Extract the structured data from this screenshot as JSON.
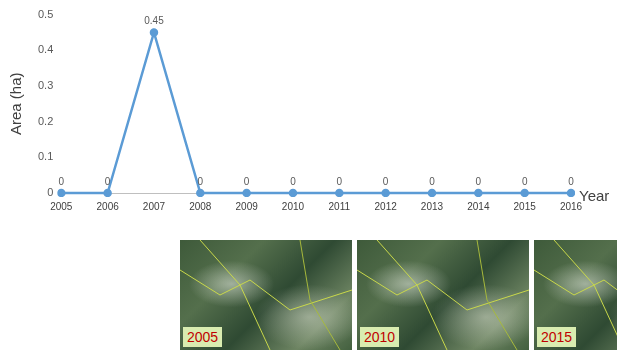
{
  "chart_data": {
    "type": "line",
    "y_label": "Area (ha)",
    "x_label": "Year",
    "categories": [
      "2005",
      "2006",
      "2007",
      "2008",
      "2009",
      "2010",
      "2011",
      "2012",
      "2013",
      "2014",
      "2015",
      "2016"
    ],
    "values": [
      0,
      0,
      0.45,
      0,
      0,
      0,
      0,
      0,
      0,
      0,
      0,
      0
    ],
    "color": "#5b9bd5",
    "marker": "circle",
    "data_labels": true,
    "grid": false,
    "ylim": [
      0,
      0.5
    ],
    "yticks": [
      0,
      0.1,
      0.2,
      0.3,
      0.4,
      0.5
    ]
  },
  "panels": [
    "2005",
    "2010",
    "2015"
  ]
}
